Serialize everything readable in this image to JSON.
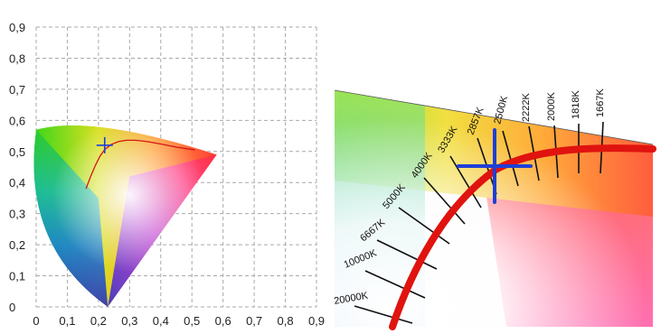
{
  "chart_data": [
    {
      "type": "scatter",
      "title": "",
      "xlabel": "",
      "ylabel": "",
      "xlim": [
        0,
        0.9
      ],
      "ylim": [
        0,
        0.9
      ],
      "grid": true,
      "x_ticks": [
        "0",
        "0,1",
        "0,2",
        "0,3",
        "0,4",
        "0,5",
        "0,6",
        "0,7",
        "0,8",
        "0,9"
      ],
      "y_ticks": [
        "0",
        "0,1",
        "0,2",
        "0,3",
        "0,4",
        "0,5",
        "0,6",
        "0,7",
        "0,8",
        "0,9"
      ],
      "gamut": {
        "red": [
          0.58,
          0.49
        ],
        "green": [
          0.0,
          0.57
        ],
        "blue": [
          0.23,
          0.0
        ]
      },
      "planckian_locus": {
        "x": [
          0.16,
          0.175,
          0.19,
          0.205,
          0.22,
          0.24,
          0.265,
          0.29,
          0.32,
          0.355,
          0.4,
          0.45,
          0.51
        ],
        "y": [
          0.38,
          0.42,
          0.455,
          0.485,
          0.506,
          0.522,
          0.532,
          0.536,
          0.536,
          0.532,
          0.524,
          0.514,
          0.505
        ]
      },
      "marker": {
        "x": 0.22,
        "y": 0.52,
        "symbol": "+"
      },
      "colors": {
        "locus": "#d41515",
        "marker": "#1f3fd6",
        "grid": "#a9a9a9"
      }
    },
    {
      "type": "scatter",
      "title": "",
      "zoomed_detail": true,
      "isotherm_labels": [
        "1667K",
        "1818K",
        "2000K",
        "2222K",
        "2500K",
        "2857K",
        "3333K",
        "4000K",
        "5000K",
        "6667K",
        "10000K",
        "20000K"
      ],
      "marker": {
        "on_label": "2857K",
        "symbol": "+"
      },
      "colors": {
        "locus": "#e0130f",
        "marker": "#1f3fd6",
        "isotherm": "#111111"
      }
    }
  ]
}
